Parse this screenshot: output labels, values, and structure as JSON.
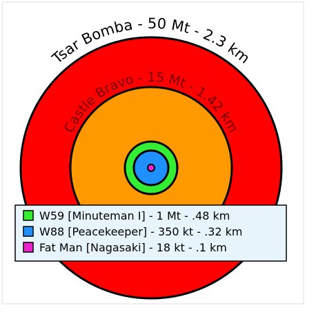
{
  "rings": [
    {
      "label": "Tsar Bomba - 50 Mt - 2.3 km"
    },
    {
      "label": "Castle Bravo - 15 Mt - 1.42 km"
    }
  ],
  "legend": [
    {
      "label": "W59 [Minuteman I] - 1 Mt - .48 km"
    },
    {
      "label": "W88 [Peacekeeper] - 350 kt - .32 km"
    },
    {
      "label": "Fat Man [Nagasaki] - 18 kt - .1 km"
    }
  ]
}
